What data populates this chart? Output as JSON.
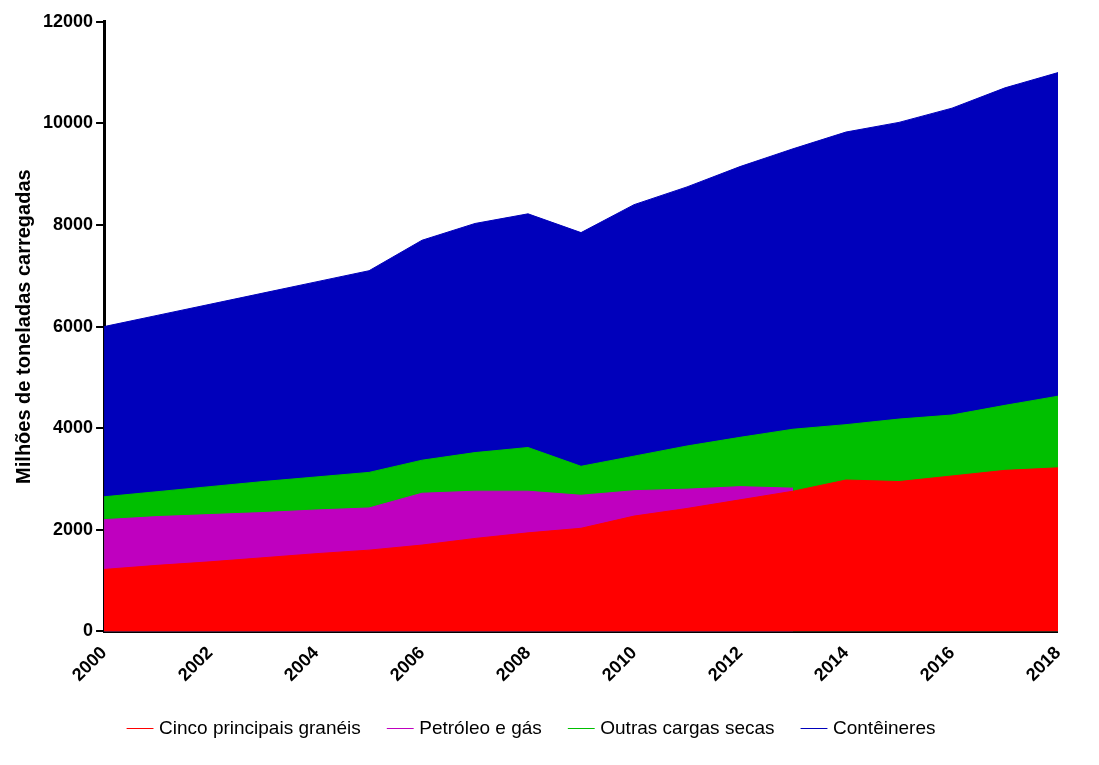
{
  "chart_data": {
    "type": "area",
    "ylabel": "Milhões de toneladas carregadas",
    "x": [
      2000,
      2001,
      2002,
      2003,
      2004,
      2005,
      2006,
      2007,
      2008,
      2009,
      2010,
      2011,
      2012,
      2013,
      2014,
      2015,
      2016,
      2017,
      2018
    ],
    "xlim": [
      2000,
      2018
    ],
    "xticks": [
      2000,
      2002,
      2004,
      2006,
      2008,
      2010,
      2012,
      2014,
      2016,
      2018
    ],
    "ylim": [
      0,
      12000
    ],
    "yticks": [
      0,
      2000,
      4000,
      6000,
      8000,
      10000,
      12000
    ],
    "grid": false,
    "legend": "bottom",
    "series": [
      {
        "name": "Contêineres",
        "color": "#0000bb",
        "values": [
          6000,
          6220,
          6440,
          6660,
          6880,
          7100,
          7700,
          8030,
          8220,
          7850,
          8400,
          8750,
          9150,
          9500,
          9830,
          10020,
          10300,
          10700,
          11000
        ]
      },
      {
        "name": "Outras cargas secas",
        "color": "#00bf00",
        "values": [
          2650,
          2750,
          2850,
          2950,
          3040,
          3130,
          3370,
          3520,
          3620,
          3250,
          3450,
          3650,
          3820,
          3980,
          4070,
          4180,
          4260,
          4450,
          4630
        ]
      },
      {
        "name": "Cinco principais granéis",
        "color": "#ff0000",
        "values": [
          1220,
          1300,
          1370,
          1450,
          1530,
          1600,
          1700,
          1830,
          1940,
          2030,
          2270,
          2420,
          2590,
          2760,
          2980,
          2950,
          3060,
          3170,
          3220
        ]
      },
      {
        "name": "Petróleo e gás",
        "color": "#bf00bf",
        "values": [
          2200,
          2260,
          2300,
          2340,
          2390,
          2430,
          2720,
          2760,
          2760,
          2680,
          2770,
          2800,
          2850,
          2820,
          null,
          null,
          null,
          null,
          null
        ]
      }
    ]
  }
}
